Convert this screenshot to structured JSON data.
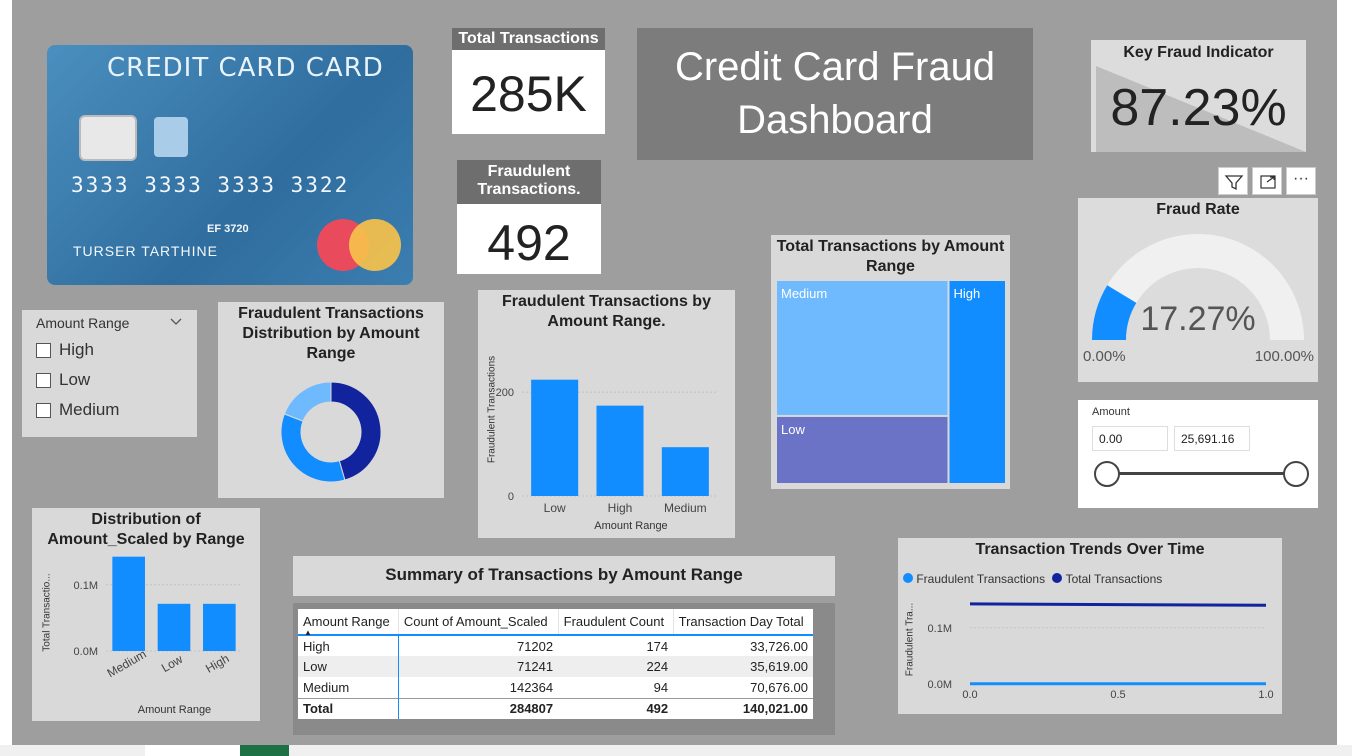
{
  "colors": {
    "canvas": "#9e9e9e",
    "accent": "#118dff",
    "dark_blue": "#12239e",
    "light_blue": "#6fb9ff",
    "purple": "#6b73c7"
  },
  "card_image": {
    "brand": "CREDIT CARD CARD",
    "number": "3333 3333 3333 3322",
    "name": "TURSER TARTHINE",
    "expiry": "EF 3720"
  },
  "kpi_total": {
    "label": "Total Transactions",
    "value": "285K"
  },
  "kpi_fraud": {
    "label": "Fraudulent Transactions.",
    "value": "492"
  },
  "dashboard_title": "Credit Card Fraud Dashboard",
  "key_indicator": {
    "label": "Key Fraud Indicator",
    "value": "87.23%"
  },
  "toolbar": {
    "filter_icon": "filter-icon",
    "focus_icon": "focus-mode-icon",
    "more_icon": "more-options-icon"
  },
  "fraud_rate": {
    "title": "Fraud Rate",
    "value": "17.27%",
    "min": "0.00%",
    "max": "100.00%",
    "fraction": 0.1727
  },
  "amount_slicer": {
    "label": "Amount",
    "min": "0.00",
    "max": "25,691.16"
  },
  "range_slicer": {
    "title": "Amount Range",
    "options": [
      "High",
      "Low",
      "Medium"
    ]
  },
  "donut": {
    "title": "Fraudulent Transactions Distribution by Amount Range"
  },
  "bar_fraud": {
    "title": "Fraudulent Transactions by Amount Range.",
    "xlabel": "Amount Range",
    "ylabel": "Fraudulent Transactions"
  },
  "treemap": {
    "title": "Total Transactions by Amount Range"
  },
  "dist_scaled": {
    "title": "Distribution of Amount_Scaled by Range",
    "xlabel": "Amount Range",
    "ylabel": "Total Transactio..."
  },
  "summary": {
    "title": "Summary of Transactions by Amount Range",
    "headers": [
      "Amount Range",
      "Count of Amount_Scaled",
      "Fraudulent Count",
      "Transaction Day Total"
    ],
    "rows": [
      [
        "High",
        "71202",
        "174",
        "33,726.00"
      ],
      [
        "Low",
        "71241",
        "224",
        "35,619.00"
      ],
      [
        "Medium",
        "142364",
        "94",
        "70,676.00"
      ]
    ],
    "total": [
      "Total",
      "284807",
      "492",
      "140,021.00"
    ]
  },
  "trend": {
    "title": "Transaction Trends Over Time",
    "legend": [
      "Fraudulent Transactions",
      "Total Transactions"
    ],
    "ylabel": "Fraudulent Tra..."
  },
  "chart_data": [
    {
      "type": "pie",
      "title": "Fraudulent Transactions Distribution by Amount Range",
      "categories": [
        "Low",
        "High",
        "Medium"
      ],
      "values": [
        224,
        174,
        94
      ],
      "colors": [
        "#12239e",
        "#118dff",
        "#6fb9ff"
      ],
      "donut": true
    },
    {
      "type": "bar",
      "title": "Fraudulent Transactions by Amount Range.",
      "categories": [
        "Low",
        "High",
        "Medium"
      ],
      "values": [
        224,
        174,
        94
      ],
      "xlabel": "Amount Range",
      "ylabel": "Fraudulent Transactions",
      "ylim": [
        0,
        260
      ],
      "yticks": [
        "0",
        "200"
      ]
    },
    {
      "type": "heatmap",
      "title": "Total Transactions by Amount Range",
      "categories": [
        "Medium",
        "Low",
        "High"
      ],
      "values": [
        142364,
        71241,
        71202
      ],
      "colors": [
        "#6fb9ff",
        "#6b73c7",
        "#118dff"
      ]
    },
    {
      "type": "bar",
      "title": "Distribution of Amount_Scaled by Range",
      "categories": [
        "Medium",
        "Low",
        "High"
      ],
      "values": [
        142364,
        71241,
        71202
      ],
      "xlabel": "Amount Range",
      "ylabel": "Total Transactio...",
      "ylim": [
        0,
        160000
      ],
      "yticks": [
        "0.0M",
        "0.1M"
      ]
    },
    {
      "type": "line",
      "title": "Transaction Trends Over Time",
      "x": [
        0.0,
        1.0
      ],
      "xticks": [
        "0.0",
        "0.5",
        "1.0"
      ],
      "yticks": [
        "0.0M",
        "0.1M"
      ],
      "ylim": [
        0,
        160000
      ],
      "series": [
        {
          "name": "Fraudulent Transactions",
          "values": [
            492,
            492
          ],
          "color": "#118dff"
        },
        {
          "name": "Total Transactions",
          "values": [
            142364,
            140000
          ],
          "color": "#12239e"
        }
      ]
    }
  ]
}
